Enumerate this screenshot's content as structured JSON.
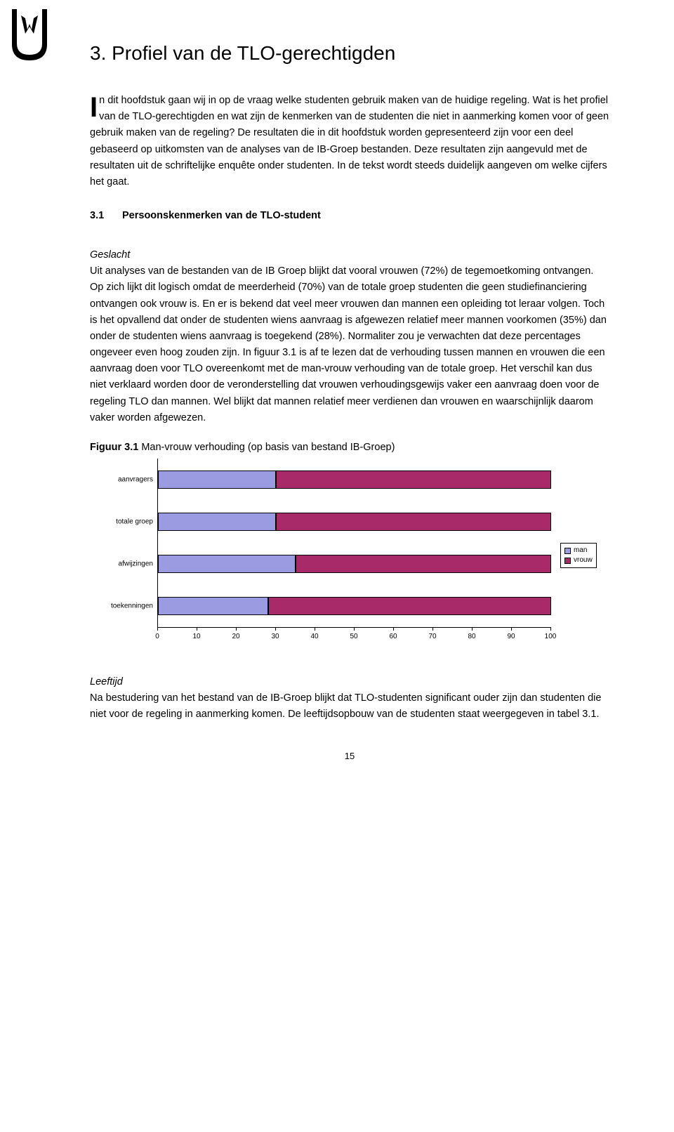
{
  "heading": "3.  Profiel van de TLO-gerechtigden",
  "intro": {
    "dropcap": "I",
    "text": "n dit hoofdstuk gaan wij in op de vraag welke studenten gebruik maken van de huidige regeling. Wat is het profiel van de TLO-gerechtigden en wat zijn de kenmerken van de studenten die niet in aanmerking komen voor of geen gebruik maken van de regeling? De resultaten die in dit hoofdstuk worden gepresenteerd zijn voor een deel gebaseerd op uitkomsten van de analyses van de IB-Groep bestanden. Deze resultaten zijn aangevuld met de resultaten uit de schriftelijke enquête onder studenten. In de tekst wordt steeds duidelijk aangeven om welke cijfers het gaat."
  },
  "section": {
    "num": "3.1",
    "title": "Persoonskenmerken van de TLO-student"
  },
  "geslacht": {
    "label": "Geslacht",
    "text": "Uit analyses van de bestanden van de IB Groep blijkt dat vooral vrouwen (72%) de tegemoetkoming ontvangen. Op zich lijkt dit logisch omdat de meerderheid (70%) van de totale groep studenten die geen studiefinanciering ontvangen ook vrouw is. En er is bekend dat veel meer vrouwen dan mannen een opleiding tot leraar volgen. Toch is het opvallend dat onder de studenten wiens aanvraag is afgewezen relatief meer mannen voorkomen (35%) dan onder de studenten wiens aanvraag is toegekend (28%). Normaliter zou je verwachten dat deze percentages ongeveer even hoog zouden zijn. In figuur 3.1 is af te lezen dat de verhouding tussen mannen en vrouwen die een aanvraag doen voor TLO overeenkomt met de man-vrouw verhouding van de totale groep. Het verschil kan dus niet verklaard worden door de veronderstelling dat vrouwen verhoudingsgewijs vaker een aanvraag doen voor de regeling TLO dan mannen. Wel blijkt dat mannen relatief meer verdienen dan vrouwen en waarschijnlijk daarom vaker worden afgewezen."
  },
  "figure": {
    "label_bold": "Figuur 3.1",
    "label_rest": " Man-vrouw verhouding (op basis van bestand IB-Groep)",
    "type": "stacked-horizontal-bar",
    "xmax": 100,
    "xtick_step": 10,
    "colors": {
      "man": "#9b9be1",
      "vrouw": "#a82a68",
      "border": "#000000",
      "axis": "#000000"
    },
    "categories": [
      {
        "key": "aanvragers",
        "label": "aanvragers",
        "man": 30,
        "vrouw": 70
      },
      {
        "key": "totale_groep",
        "label": "totale groep",
        "man": 30,
        "vrouw": 70
      },
      {
        "key": "afwijzingen",
        "label": "afwijzingen",
        "man": 35,
        "vrouw": 65
      },
      {
        "key": "toekenningen",
        "label": "toekenningen",
        "man": 28,
        "vrouw": 72
      }
    ],
    "legend": [
      {
        "key": "man",
        "label": "man"
      },
      {
        "key": "vrouw",
        "label": "vrouw"
      }
    ]
  },
  "leeftijd": {
    "label": "Leeftijd",
    "text": "Na bestudering van het bestand van de IB-Groep blijkt dat TLO-studenten significant ouder zijn dan studenten die niet voor de regeling in aanmerking komen. De leeftijdsopbouw van de studenten staat weergegeven in tabel 3.1."
  },
  "page_number": "15"
}
